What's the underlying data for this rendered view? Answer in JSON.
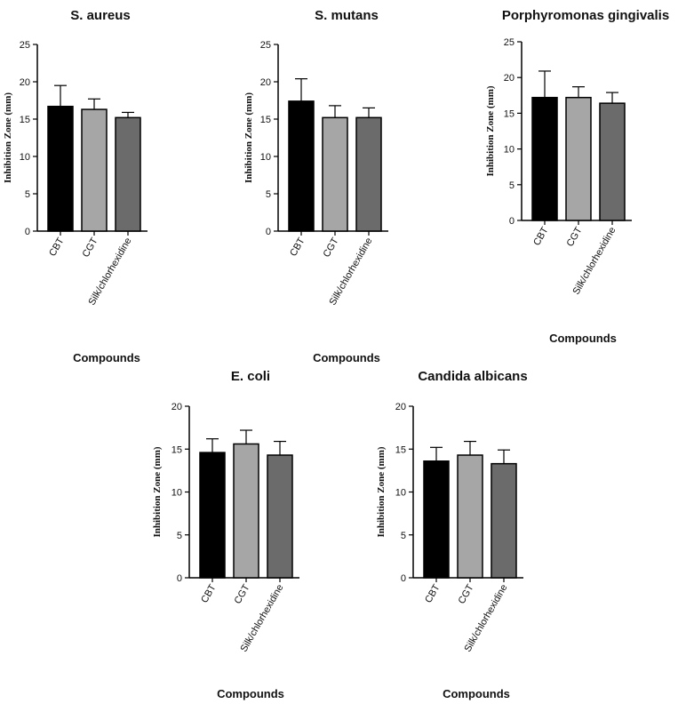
{
  "chart_data": [
    {
      "type": "bar",
      "title": "S. aureus",
      "xlabel": "Compounds",
      "ylabel": "Inhibition Zone (mm)",
      "ylim": [
        0,
        25
      ],
      "yticks": [
        0,
        5,
        10,
        15,
        20,
        25
      ],
      "categories": [
        "CBT",
        "CGT",
        "Silk/chlorhexidine"
      ],
      "values": [
        16.7,
        16.3,
        15.2
      ],
      "errors": [
        2.8,
        1.4,
        0.7
      ],
      "colors": [
        "#000000",
        "#a6a6a6",
        "#6b6b6b"
      ]
    },
    {
      "type": "bar",
      "title": "S. mutans",
      "xlabel": "Compounds",
      "ylabel": "Inhibition Zone (mm)",
      "ylim": [
        0,
        25
      ],
      "yticks": [
        0,
        5,
        10,
        15,
        20,
        25
      ],
      "categories": [
        "CBT",
        "CGT",
        "Silk/chlorhexidine"
      ],
      "values": [
        17.4,
        15.2,
        15.2
      ],
      "errors": [
        3.0,
        1.6,
        1.3
      ],
      "colors": [
        "#000000",
        "#a6a6a6",
        "#6b6b6b"
      ]
    },
    {
      "type": "bar",
      "title": "Porphyromonas gingivalis",
      "xlabel": "Compounds",
      "ylabel": "Inhibition Zone (mm)",
      "ylim": [
        0,
        25
      ],
      "yticks": [
        0,
        5,
        10,
        15,
        20,
        25
      ],
      "categories": [
        "CBT",
        "CGT",
        "Silk/chlorhexidine"
      ],
      "values": [
        17.2,
        17.2,
        16.4
      ],
      "errors": [
        3.7,
        1.5,
        1.5
      ],
      "colors": [
        "#000000",
        "#a6a6a6",
        "#6b6b6b"
      ]
    },
    {
      "type": "bar",
      "title": "E. coli",
      "xlabel": "Compounds",
      "ylabel": "Inhibition Zone (mm)",
      "ylim": [
        0,
        20
      ],
      "yticks": [
        0,
        5,
        10,
        15,
        20
      ],
      "categories": [
        "CBT",
        "CGT",
        "Silk/chlorhexidine"
      ],
      "values": [
        14.6,
        15.6,
        14.3
      ],
      "errors": [
        1.6,
        1.6,
        1.6
      ],
      "colors": [
        "#000000",
        "#a6a6a6",
        "#6b6b6b"
      ]
    },
    {
      "type": "bar",
      "title": "Candida albicans",
      "xlabel": "Compounds",
      "ylabel": "Inhibition Zone (mm)",
      "ylim": [
        0,
        20
      ],
      "yticks": [
        0,
        5,
        10,
        15,
        20
      ],
      "categories": [
        "CBT",
        "CGT",
        "Silk/chlorhexidine"
      ],
      "values": [
        13.6,
        14.3,
        13.3
      ],
      "errors": [
        1.6,
        1.6,
        1.6
      ],
      "colors": [
        "#000000",
        "#a6a6a6",
        "#6b6b6b"
      ]
    }
  ]
}
